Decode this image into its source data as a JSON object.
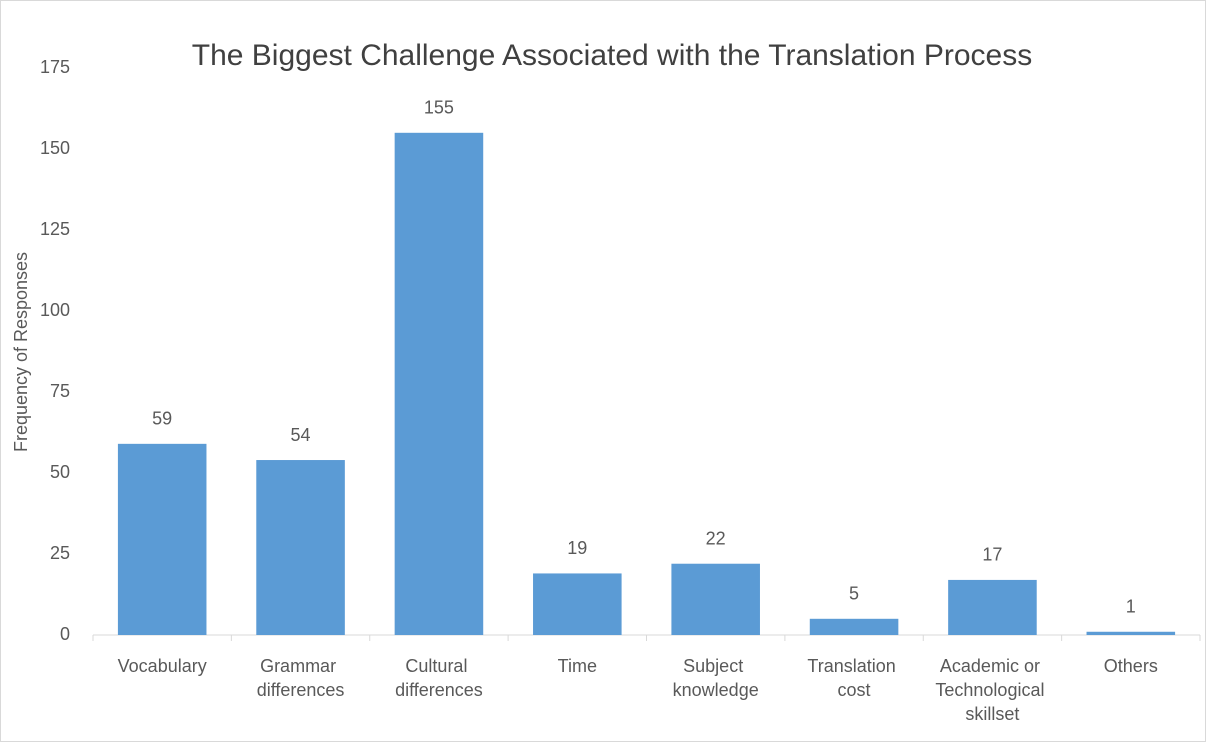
{
  "chart_data": {
    "type": "bar",
    "title": "The Biggest Challenge Associated with the Translation Process",
    "y_label": "Frequency of Responses",
    "categories": [
      "Vocabulary",
      "Grammar differences",
      "Cultural differences",
      "Time",
      "Subject knowledge",
      "Translation cost",
      "Academic or Technological skillset",
      "Others"
    ],
    "values": [
      59,
      54,
      155,
      19,
      22,
      5,
      17,
      1
    ],
    "color": "#5b9bd5",
    "ylim": [
      0,
      175
    ],
    "yticks": [
      0,
      25,
      50,
      75,
      100,
      125,
      150,
      175
    ],
    "grid": false
  }
}
